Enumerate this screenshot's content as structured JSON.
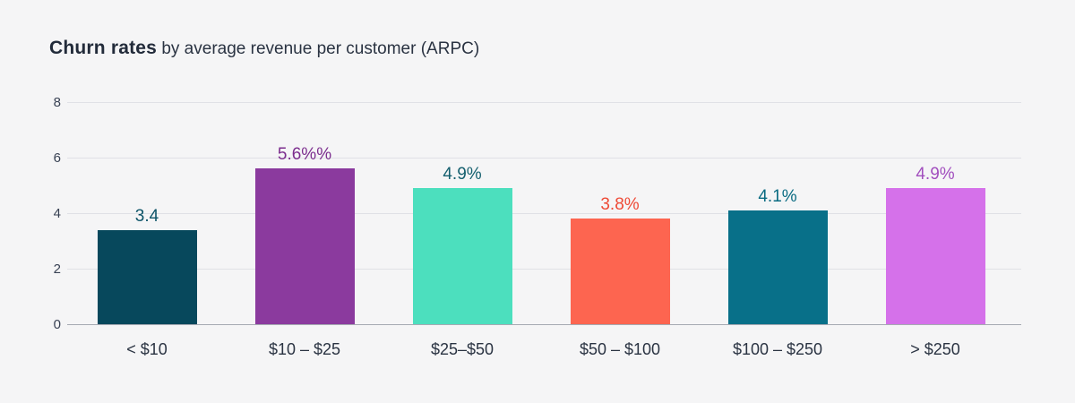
{
  "header": {
    "title_bold": "Churn rates",
    "title_rest": " by average revenue per customer (ARPC)"
  },
  "chart_data": {
    "type": "bar",
    "title": "Churn rates by average revenue per customer (ARPC)",
    "categories": [
      "< $10",
      "$10 – $25",
      "$25–$50",
      "$50 – $100",
      "$100 – $250",
      "> $250"
    ],
    "values": [
      3.4,
      5.6,
      4.9,
      3.8,
      4.1,
      4.9
    ],
    "value_labels": [
      "3.4",
      "5.6%%",
      "4.9%",
      "3.8%",
      "4.1%",
      "4.9%"
    ],
    "bar_colors": [
      "#07485c",
      "#8b3a9e",
      "#4cdfbe",
      "#fd6550",
      "#087089",
      "#d571ea"
    ],
    "value_label_colors": [
      "#0d5468",
      "#7c2e8e",
      "#15606f",
      "#ee4a36",
      "#0a6b82",
      "#a24fbe"
    ],
    "xlabel": "",
    "ylabel": "",
    "yticks": [
      0,
      2,
      4,
      6,
      8
    ],
    "ylim": [
      0,
      8
    ],
    "grid": true,
    "legend": "none",
    "colors": {
      "background": "#f5f5f6",
      "gridline": "#e0e1e6",
      "baseline": "#a6aab2",
      "tick_text": "#394254",
      "category_text": "#2a3342",
      "title_text": "#222b3a"
    }
  }
}
